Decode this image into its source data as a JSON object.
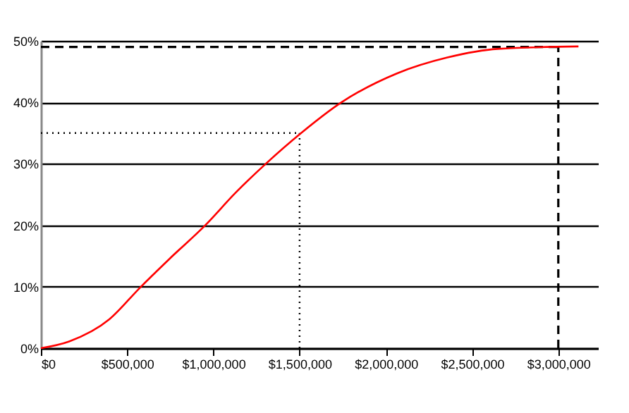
{
  "chart_data": {
    "type": "line",
    "x": [
      0,
      164000,
      397000,
      573000,
      748000,
      953000,
      1129000,
      1304000,
      1509000,
      1743000,
      2064000,
      2357000,
      2649000,
      3117000
    ],
    "series": [
      {
        "color": "#ff0000",
        "values": [
          0,
          1.1,
          4.7,
          9.8,
          14.6,
          20,
          25.3,
          30,
          35,
          40,
          44.7,
          47.3,
          48.7,
          49.1
        ]
      }
    ],
    "xlim": [
      0,
      3230000
    ],
    "xticks": [
      {
        "value": 0,
        "label": "$0"
      },
      {
        "value": 500000,
        "label": "$500,000"
      },
      {
        "value": 1000000,
        "label": "$1,000,000"
      },
      {
        "value": 1500000,
        "label": "$1,500,000"
      },
      {
        "value": 2000000,
        "label": "$2,000,000"
      },
      {
        "value": 2500000,
        "label": "$2,500,000"
      },
      {
        "value": 3000000,
        "label": "$3,000,000"
      }
    ],
    "ylim": [
      0,
      50
    ],
    "yticks": [
      {
        "value": 0,
        "label": "0%"
      },
      {
        "value": 10,
        "label": "10%"
      },
      {
        "value": 20,
        "label": "20%"
      },
      {
        "value": 30,
        "label": "30%"
      },
      {
        "value": 40,
        "label": "40%"
      },
      {
        "value": 50,
        "label": "50%"
      }
    ],
    "grid": "y",
    "marker": "none",
    "line_style": "solid",
    "ref_lines": [
      {
        "axis": "y",
        "value": 35,
        "line_style": "dotted",
        "color": "#000000"
      },
      {
        "axis": "x",
        "value": 1500000,
        "line_style": "dotted",
        "color": "#000000"
      },
      {
        "axis": "y",
        "value": 49,
        "line_style": "dashed",
        "color": "#000000"
      },
      {
        "axis": "x",
        "value": 3000000,
        "line_style": "dashed",
        "color": "#000000"
      }
    ]
  }
}
